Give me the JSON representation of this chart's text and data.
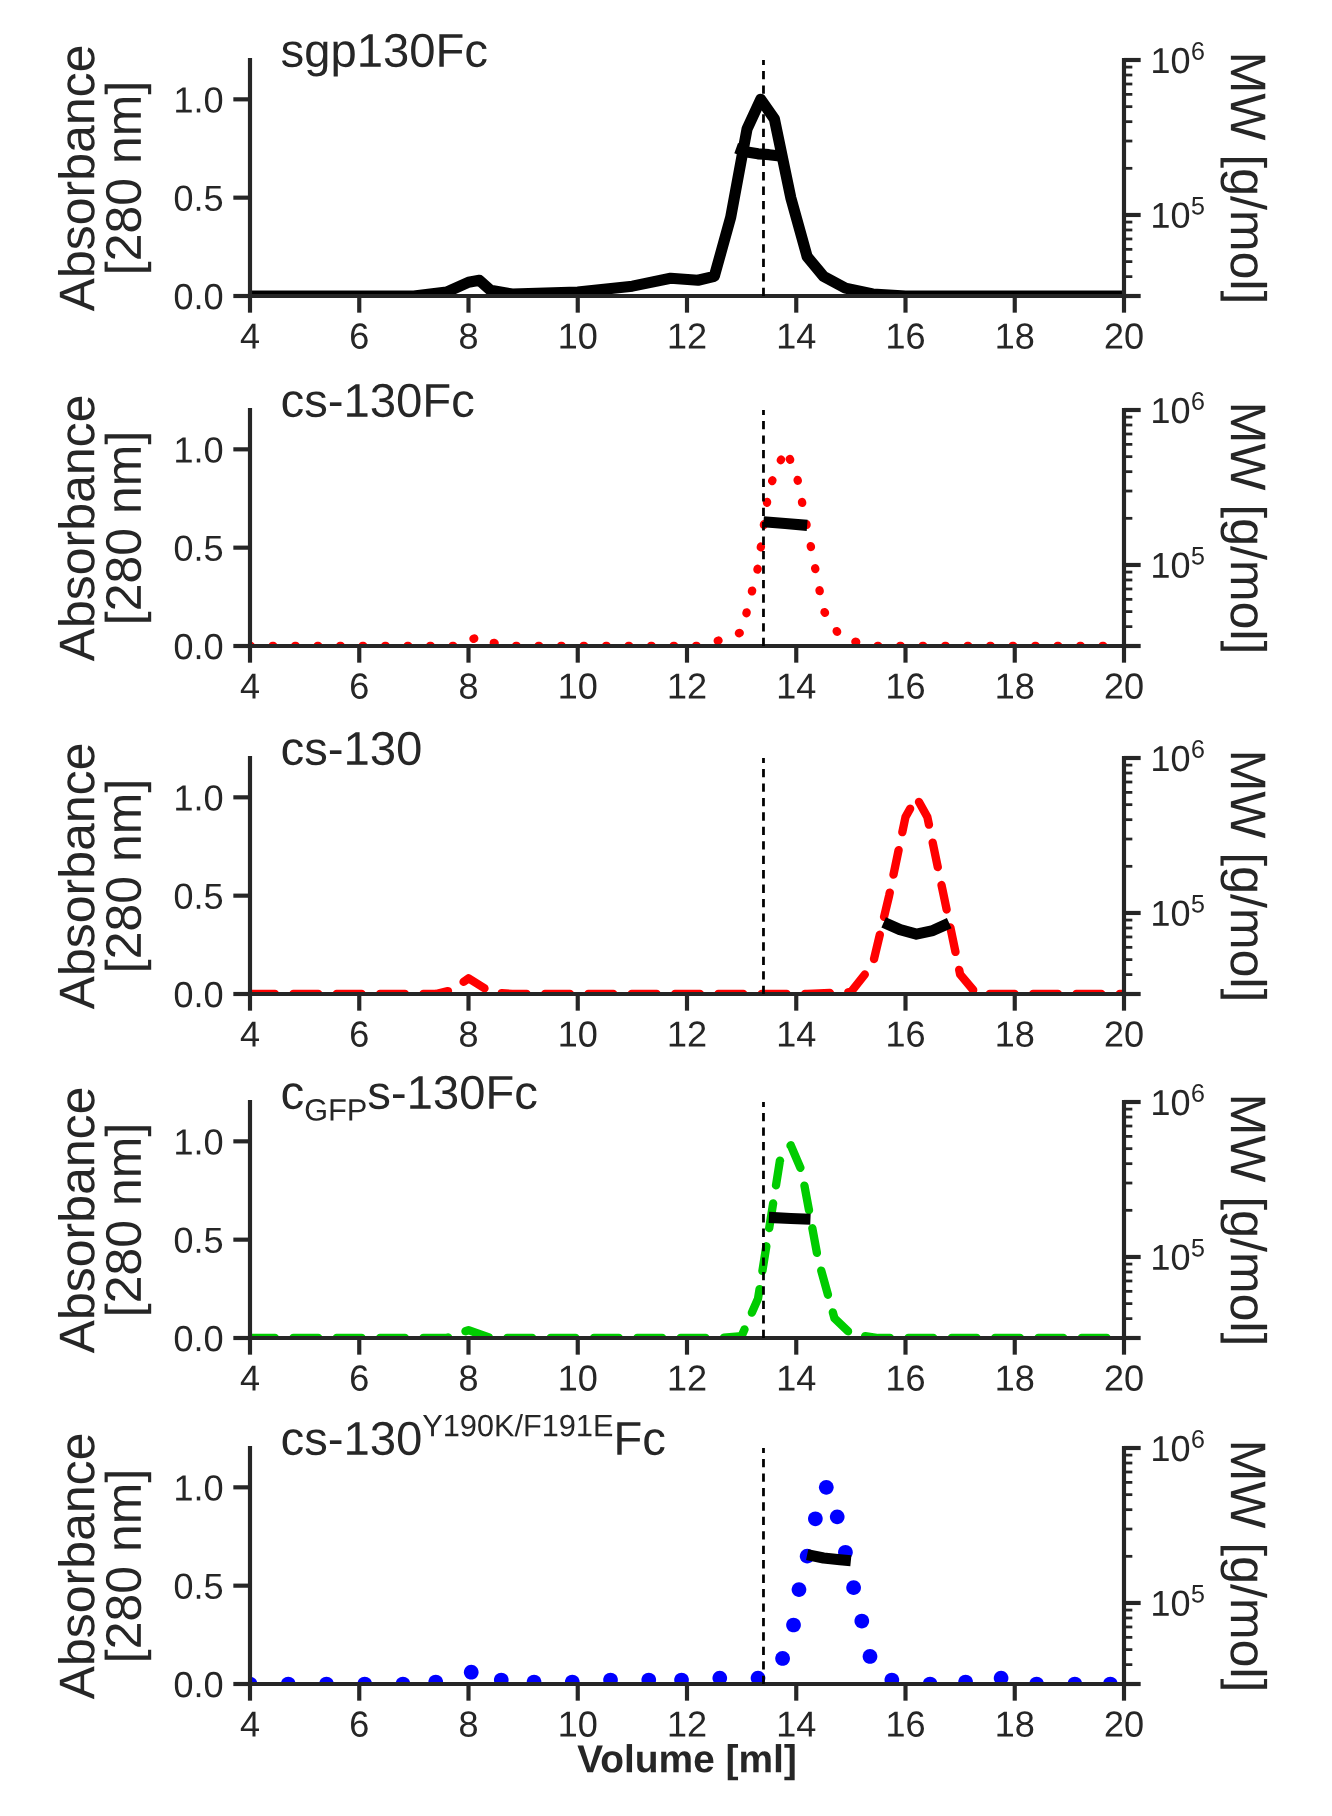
{
  "chart_data": [
    {
      "type": "line",
      "title": "sgp130Fc",
      "ylabel": "Absorbance\n[280 nm]",
      "y2label": "MW [g/mol]",
      "xlim": [
        4,
        20
      ],
      "xticks": [
        4,
        6,
        8,
        10,
        12,
        14,
        16,
        18,
        20
      ],
      "ylim": [
        0,
        1.2
      ],
      "yticks": [
        {
          "value": 0,
          "label": "0.0"
        },
        {
          "value": 0.5,
          "label": "0.5"
        },
        {
          "value": 1,
          "label": "1.0"
        }
      ],
      "y2lim": [
        30000,
        1000000
      ],
      "y2ticks": [
        {
          "value": 30000,
          "label": null
        },
        {
          "value": 100000,
          "label": "10$^{5}$"
        },
        {
          "value": 1000000,
          "label": "10$^{6}$"
        }
      ],
      "log": "y2",
      "ref_lines": [
        {
          "axis": "x",
          "value": 13.4,
          "color": "#000000",
          "line_style": "dashed"
        }
      ],
      "series": [
        {
          "color": "#000000",
          "line_style": "solid",
          "x": [
            4,
            7,
            7.6,
            8.0,
            8.2,
            8.4,
            8.8,
            10,
            11,
            11.7,
            12.2,
            12.5,
            12.8,
            13.1,
            13.35,
            13.6,
            13.9,
            14.2,
            14.5,
            14.9,
            15.4,
            16,
            20
          ],
          "values": [
            0,
            0,
            0.02,
            0.07,
            0.08,
            0.03,
            0.01,
            0.02,
            0.05,
            0.09,
            0.08,
            0.1,
            0.4,
            0.85,
            1.0,
            0.9,
            0.5,
            0.2,
            0.1,
            0.04,
            0.01,
            0,
            0
          ]
        },
        {
          "axis": "y2",
          "color": "#000000",
          "line_style": "solid",
          "x": [
            12.9,
            13.1,
            13.3,
            13.5,
            13.7
          ],
          "values": [
            270000,
            255000,
            248000,
            245000,
            240000
          ]
        }
      ]
    },
    {
      "type": "line",
      "title": "cs-130Fc",
      "ylabel": "Absorbance\n[280 nm]",
      "y2label": "MW [g/mol]",
      "xlim": [
        4,
        20
      ],
      "xticks": [
        4,
        6,
        8,
        10,
        12,
        14,
        16,
        18,
        20
      ],
      "ylim": [
        0,
        1.2
      ],
      "yticks": [
        {
          "value": 0,
          "label": "0.0"
        },
        {
          "value": 0.5,
          "label": "0.5"
        },
        {
          "value": 1,
          "label": "1.0"
        }
      ],
      "y2lim": [
        30000,
        1000000
      ],
      "y2ticks": [
        {
          "value": 30000,
          "label": null
        },
        {
          "value": 100000,
          "label": "10$^{5}$"
        },
        {
          "value": 1000000,
          "label": "10$^{6}$"
        }
      ],
      "log": "y2",
      "ref_lines": [
        {
          "axis": "x",
          "value": 13.4,
          "color": "#000000",
          "line_style": "dashed"
        }
      ],
      "series": [
        {
          "color": "#ff0000",
          "line_style": "dotted",
          "x": [
            4,
            7.8,
            8.2,
            8.4,
            8.7,
            12.2,
            12.5,
            13.0,
            13.3,
            13.5,
            13.8,
            14.0,
            14.2,
            14.5,
            14.8,
            15.1,
            15.5,
            20
          ],
          "values": [
            0,
            0,
            0.05,
            0.02,
            0,
            0,
            0.02,
            0.07,
            0.4,
            0.8,
            1.0,
            0.88,
            0.6,
            0.18,
            0.05,
            0.02,
            0,
            0
          ]
        },
        {
          "axis": "y2",
          "color": "#000000",
          "line_style": "solid",
          "x": [
            13.4,
            13.8,
            14.2
          ],
          "values": [
            190000,
            185000,
            180000
          ]
        }
      ]
    },
    {
      "type": "line",
      "title": "cs-130",
      "ylabel": "Absorbance\n[280 nm]",
      "y2label": "MW [g/mol]",
      "xlim": [
        4,
        20
      ],
      "xticks": [
        4,
        6,
        8,
        10,
        12,
        14,
        16,
        18,
        20
      ],
      "ylim": [
        0,
        1.2
      ],
      "yticks": [
        {
          "value": 0,
          "label": "0.0"
        },
        {
          "value": 0.5,
          "label": "0.5"
        },
        {
          "value": 1,
          "label": "1.0"
        }
      ],
      "y2lim": [
        30000,
        1000000
      ],
      "y2ticks": [
        {
          "value": 30000,
          "label": null
        },
        {
          "value": 100000,
          "label": "10$^{5}$"
        },
        {
          "value": 1000000,
          "label": "10$^{6}$"
        }
      ],
      "log": "y2",
      "ref_lines": [
        {
          "axis": "x",
          "value": 13.4,
          "color": "#000000",
          "line_style": "dashed"
        }
      ],
      "series": [
        {
          "color": "#ff0000",
          "line_style": "dashed",
          "x": [
            4,
            7.4,
            7.7,
            8.0,
            8.4,
            8.8,
            14.2,
            15.0,
            15.4,
            15.7,
            16.0,
            16.2,
            16.4,
            16.7,
            17.0,
            17.3,
            20
          ],
          "values": [
            0,
            0,
            0.02,
            0.08,
            0.01,
            0,
            0,
            0.01,
            0.15,
            0.5,
            0.9,
            1.0,
            0.9,
            0.5,
            0.1,
            0,
            0
          ]
        },
        {
          "axis": "y2",
          "color": "#000000",
          "line_style": "solid",
          "x": [
            15.6,
            15.9,
            16.2,
            16.5,
            16.8
          ],
          "values": [
            87000,
            78000,
            73000,
            77000,
            86000
          ]
        }
      ]
    },
    {
      "type": "line",
      "title": "c$_{GFP}$s-130Fc",
      "ylabel": "Absorbance\n[280 nm]",
      "y2label": "MW [g/mol]",
      "xlim": [
        4,
        20
      ],
      "xticks": [
        4,
        6,
        8,
        10,
        12,
        14,
        16,
        18,
        20
      ],
      "ylim": [
        0,
        1.2
      ],
      "yticks": [
        {
          "value": 0,
          "label": "0.0"
        },
        {
          "value": 0.5,
          "label": "0.5"
        },
        {
          "value": 1,
          "label": "1.0"
        }
      ],
      "y2lim": [
        30000,
        1000000
      ],
      "y2ticks": [
        {
          "value": 30000,
          "label": null
        },
        {
          "value": 100000,
          "label": "10$^{5}$"
        },
        {
          "value": 1000000,
          "label": "10$^{6}$"
        }
      ],
      "log": "y2",
      "ref_lines": [
        {
          "axis": "x",
          "value": 13.4,
          "color": "#000000",
          "line_style": "dashed"
        }
      ],
      "series": [
        {
          "color": "#00cc00",
          "line_style": "dashed",
          "x": [
            4,
            7.6,
            8.0,
            8.4,
            12.6,
            13.0,
            13.3,
            13.5,
            13.7,
            13.9,
            14.1,
            14.4,
            14.7,
            15.0,
            15.5,
            20
          ],
          "values": [
            0,
            0,
            0.04,
            0,
            0,
            0.01,
            0.2,
            0.55,
            0.9,
            0.98,
            0.85,
            0.4,
            0.1,
            0.02,
            0,
            0
          ]
        },
        {
          "axis": "y2",
          "color": "#000000",
          "line_style": "solid",
          "x": [
            13.5,
            13.9,
            14.26
          ],
          "values": [
            180000,
            177000,
            175000
          ]
        }
      ]
    },
    {
      "type": "line",
      "title": "cs-130$^{Y190K/F191E}$Fc",
      "xlabel": "Volume [ml]",
      "ylabel": "Absorbance\n[280 nm]",
      "y2label": "MW [g/mol]",
      "xlim": [
        4,
        20
      ],
      "xticks": [
        4,
        6,
        8,
        10,
        12,
        14,
        16,
        18,
        20
      ],
      "ylim": [
        0,
        1.2
      ],
      "yticks": [
        {
          "value": 0,
          "label": "0.0"
        },
        {
          "value": 0.5,
          "label": "0.5"
        },
        {
          "value": 1,
          "label": "1.0"
        }
      ],
      "y2lim": [
        30000,
        1000000
      ],
      "y2ticks": [
        {
          "value": 30000,
          "label": null
        },
        {
          "value": 100000,
          "label": "10$^{5}$"
        },
        {
          "value": 1000000,
          "label": "10$^{6}$"
        }
      ],
      "log": "y2",
      "ref_lines": [
        {
          "axis": "x",
          "value": 13.4,
          "color": "#000000",
          "line_style": "dashed"
        }
      ],
      "series": [
        {
          "type": "scatter",
          "color": "#0000ff",
          "marker": "circle",
          "x": [
            4,
            4.7,
            5.4,
            6.1,
            6.8,
            7.4,
            8.05,
            8.6,
            9.2,
            9.9,
            10.6,
            11.3,
            11.9,
            12.6,
            13.3,
            13.75,
            13.95,
            14.05,
            14.2,
            14.35,
            14.55,
            14.75,
            14.9,
            15.05,
            15.2,
            15.35,
            15.75,
            16.45,
            17.1,
            17.75,
            18.4,
            19.1,
            19.75
          ],
          "values": [
            0,
            0,
            0,
            0,
            0,
            0.01,
            0.06,
            0.02,
            0.01,
            0.01,
            0.02,
            0.02,
            0.02,
            0.03,
            0.03,
            0.13,
            0.3,
            0.48,
            0.65,
            0.84,
            1.0,
            0.85,
            0.67,
            0.49,
            0.32,
            0.14,
            0.02,
            0,
            0.01,
            0.03,
            0,
            0,
            0
          ]
        },
        {
          "axis": "y2",
          "color": "#000000",
          "line_style": "solid",
          "x": [
            14.2,
            14.5,
            14.8,
            15.0
          ],
          "values": [
            205000,
            195000,
            190000,
            187000
          ]
        }
      ]
    }
  ]
}
